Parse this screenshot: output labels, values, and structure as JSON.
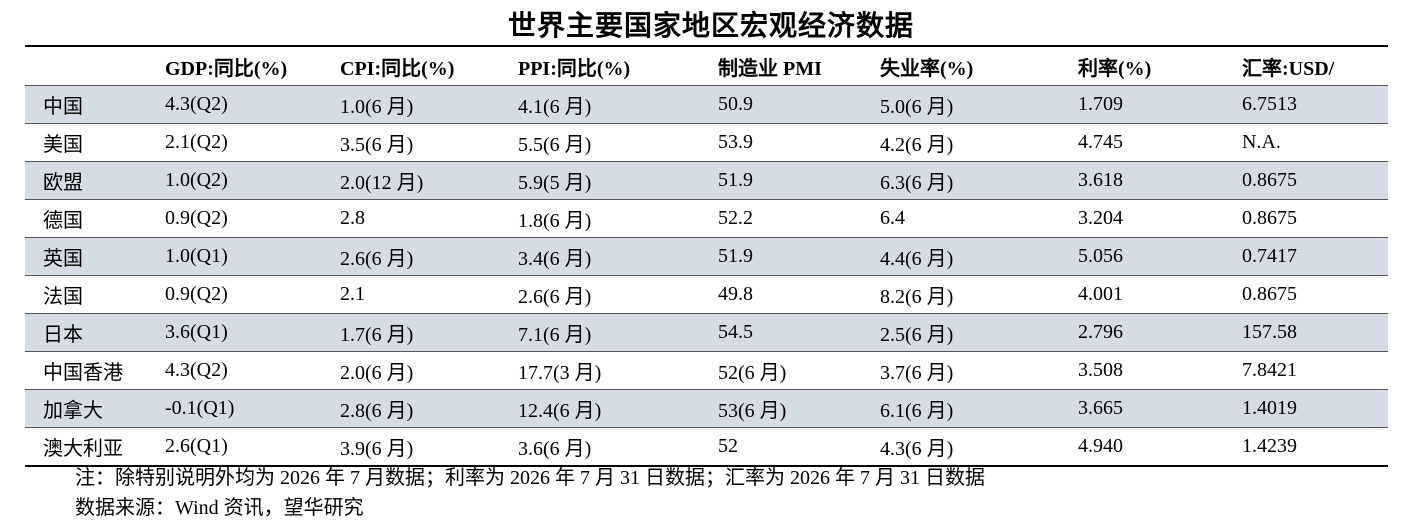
{
  "header": {
    "title": "世界主要国家地区宏观经济数据"
  },
  "table": {
    "columns": [
      "GDP:同比(%)",
      "CPI:同比(%)",
      "PPI:同比(%)",
      "制造业 PMI",
      "失业率(%)",
      "利率(%)",
      "汇率:USD/"
    ],
    "rows": [
      [
        "中国",
        "4.3(Q2)",
        "1.0(6 月)",
        "4.1(6 月)",
        "50.9",
        "5.0(6 月)",
        "1.709",
        "6.7513"
      ],
      [
        "美国",
        "2.1(Q2)",
        "3.5(6 月)",
        "5.5(6 月)",
        "53.9",
        "4.2(6 月)",
        "4.745",
        "N.A."
      ],
      [
        "欧盟",
        "1.0(Q2)",
        "2.0(12 月)",
        "5.9(5 月)",
        "51.9",
        "6.3(6 月)",
        "3.618",
        "0.8675"
      ],
      [
        "德国",
        "0.9(Q2)",
        "2.8",
        "1.8(6 月)",
        "52.2",
        "6.4",
        "3.204",
        "0.8675"
      ],
      [
        "英国",
        "1.0(Q1)",
        "2.6(6 月)",
        "3.4(6 月)",
        "51.9",
        "4.4(6 月)",
        "5.056",
        "0.7417"
      ],
      [
        "法国",
        "0.9(Q2)",
        "2.1",
        "2.6(6 月)",
        "49.8",
        "8.2(6 月)",
        "4.001",
        "0.8675"
      ],
      [
        "日本",
        "3.6(Q1)",
        "1.7(6 月)",
        "7.1(6 月)",
        "54.5",
        "2.5(6 月)",
        "2.796",
        "157.58"
      ],
      [
        "中国香港",
        "4.3(Q2)",
        "2.0(6 月)",
        "17.7(3 月)",
        "52(6 月)",
        "3.7(6 月)",
        "3.508",
        "7.8421"
      ],
      [
        "加拿大",
        "-0.1(Q1)",
        "2.8(6 月)",
        "12.4(6 月)",
        "53(6 月)",
        "6.1(6 月)",
        "3.665",
        "1.4019"
      ],
      [
        "澳大利亚",
        "2.6(Q1)",
        "3.9(6 月)",
        "3.6(6 月)",
        "52",
        "4.3(6 月)",
        "4.940",
        "1.4239"
      ]
    ]
  },
  "notes": [
    "注：除特别说明外均为 2026 年 7 月数据；利率为 2026 年 7 月 31 日数据；汇率为 2026 年 7 月 31 日数据",
    "数据来源：Wind 资讯，望华研究"
  ]
}
